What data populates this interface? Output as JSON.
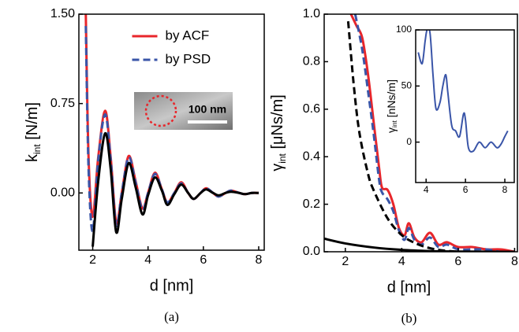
{
  "chart_data": [
    {
      "type": "line",
      "xlabel": "d [nm]",
      "ylabel": {
        "main": "k",
        "sub": "int",
        "unit": " [N/m]"
      },
      "caption": "(a)",
      "inset_label": "100 nm",
      "xlim": [
        1.5,
        8.2
      ],
      "xticks": [
        2,
        4,
        6,
        8
      ],
      "ylim": [
        -0.48,
        1.5
      ],
      "yticks": [
        {
          "value": 0,
          "label": "0.00"
        },
        0.75,
        {
          "value": 1.5,
          "label": "1.50"
        }
      ],
      "x": [
        1.75,
        1.85,
        2.0,
        2.2,
        2.45,
        2.65,
        2.85,
        3.05,
        3.3,
        3.55,
        3.8,
        4.0,
        4.25,
        4.5,
        4.7,
        4.95,
        5.2,
        5.45,
        5.65,
        5.9,
        6.1,
        6.35,
        6.55,
        6.8,
        7.0,
        7.3,
        7.5,
        7.75,
        8.0
      ],
      "series": [
        {
          "name": "by ACF",
          "color": "#e8262b",
          "dash": false,
          "values": [
            1.5,
            0.3,
            -0.2,
            0.3,
            0.69,
            0.3,
            -0.25,
            0.0,
            0.31,
            0.1,
            -0.13,
            0.0,
            0.17,
            0.03,
            -0.08,
            0.0,
            0.09,
            0.0,
            -0.05,
            0.0,
            0.04,
            0.0,
            -0.03,
            0.0,
            0.02,
            0.0,
            -0.01,
            0.0,
            0.0
          ]
        },
        {
          "name": "by PSD",
          "color": "#3a55a8",
          "dash": true,
          "values": [
            1.4,
            0.2,
            -0.32,
            0.28,
            0.66,
            0.28,
            -0.27,
            0.0,
            0.3,
            0.09,
            -0.14,
            0.0,
            0.16,
            0.03,
            -0.08,
            0.0,
            0.08,
            0.0,
            -0.05,
            0.0,
            0.04,
            0.0,
            -0.03,
            0.0,
            0.02,
            0.0,
            -0.01,
            0.0,
            0.0
          ]
        },
        {
          "color": "#000000",
          "dash": false,
          "values": [
            null,
            null,
            -0.45,
            0.1,
            0.5,
            0.2,
            -0.33,
            -0.05,
            0.25,
            0.05,
            -0.18,
            -0.02,
            0.13,
            0.02,
            -0.1,
            -0.01,
            0.07,
            0.0,
            -0.05,
            0.0,
            0.03,
            0.0,
            -0.02,
            0.0,
            0.01,
            0.0,
            -0.01,
            0.0,
            0.0
          ]
        }
      ]
    },
    {
      "type": "line",
      "xlabel": "d [nm]",
      "ylabel": {
        "main": "γ",
        "sub": "int",
        "unit": " [μNs/m]"
      },
      "caption": "(b)",
      "xlim": [
        1.25,
        8.1
      ],
      "xticks": [
        2,
        4,
        6,
        8
      ],
      "ylim": [
        0,
        1
      ],
      "yticks": [
        {
          "value": 0,
          "label": "0.0"
        },
        0.2,
        0.4,
        0.6,
        0.8,
        {
          "value": 1,
          "label": "1.0"
        }
      ],
      "series": [
        {
          "color": "#e8262b",
          "dash": false,
          "x": [
            2.2,
            2.4,
            2.6,
            2.8,
            3.0,
            3.2,
            3.3,
            3.5,
            3.7,
            3.9,
            4.1,
            4.25,
            4.45,
            4.7,
            5.0,
            5.3,
            5.6,
            6.0,
            6.5,
            7.0,
            7.5,
            8.0
          ],
          "values": [
            1.0,
            0.95,
            0.9,
            0.75,
            0.55,
            0.35,
            0.27,
            0.26,
            0.2,
            0.1,
            0.07,
            0.12,
            0.06,
            0.04,
            0.08,
            0.03,
            0.04,
            0.02,
            0.02,
            0.01,
            0.01,
            0.0
          ]
        },
        {
          "color": "#3a55a8",
          "dash": true,
          "x": [
            2.35,
            2.6,
            2.8,
            3.0,
            3.2,
            3.3,
            3.5,
            3.7,
            3.9,
            4.1,
            4.25,
            4.45,
            4.7,
            5.0,
            5.3,
            5.6,
            6.0,
            6.5,
            7.0,
            7.5,
            8.0
          ],
          "values": [
            1.0,
            0.85,
            0.68,
            0.5,
            0.3,
            0.25,
            0.22,
            0.17,
            0.09,
            0.05,
            0.1,
            0.05,
            0.03,
            0.06,
            0.02,
            0.03,
            0.01,
            0.01,
            0.01,
            0.0,
            0.0
          ]
        },
        {
          "color": "#000000",
          "dash": true,
          "x": [
            2.1,
            2.3,
            2.5,
            2.8,
            3.0,
            3.5,
            4.0,
            4.5,
            5.0,
            5.5,
            6.0
          ],
          "values": [
            0.97,
            0.7,
            0.5,
            0.33,
            0.26,
            0.14,
            0.07,
            0.035,
            0.015,
            0.005,
            0.0
          ]
        },
        {
          "color": "#000000",
          "dash": false,
          "x": [
            1.25,
            2,
            3,
            4,
            5,
            6,
            8
          ],
          "values": [
            0.055,
            0.035,
            0.018,
            0.008,
            0.003,
            0.001,
            0.0
          ]
        }
      ]
    },
    {
      "type": "line",
      "ylabel": {
        "main": "γ",
        "sub": "int",
        "unit": " [nNs/m]"
      },
      "xlim": [
        3.47,
        8.48
      ],
      "xticks": [
        4,
        6,
        8
      ],
      "ylim": [
        -36,
        100
      ],
      "yticks": [
        0,
        50,
        100
      ],
      "series": [
        {
          "color": "#3a55a8",
          "dash": false,
          "x": [
            3.6,
            3.8,
            3.95,
            4.05,
            4.2,
            4.35,
            4.5,
            4.7,
            4.85,
            5.0,
            5.1,
            5.3,
            5.5,
            5.7,
            5.9,
            6.0,
            6.15,
            6.4,
            6.7,
            7.0,
            7.3,
            7.6,
            7.8,
            8.0,
            8.15
          ],
          "values": [
            80,
            70,
            90,
            100,
            97,
            60,
            30,
            35,
            50,
            60,
            45,
            15,
            10,
            5,
            25,
            20,
            -5,
            -8,
            0,
            -5,
            0,
            -5,
            -2,
            5,
            10
          ]
        }
      ]
    }
  ]
}
